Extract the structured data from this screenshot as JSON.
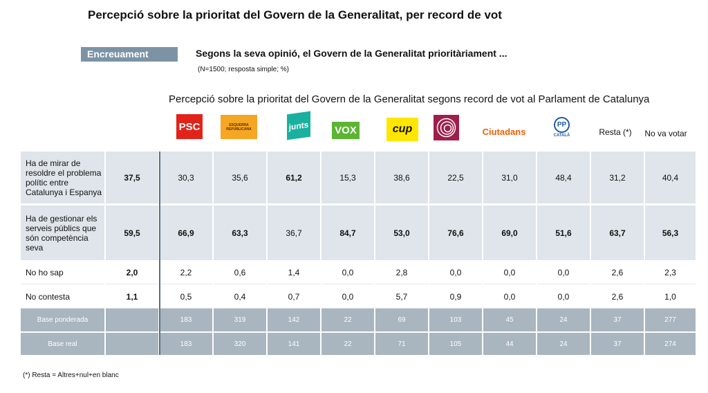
{
  "header": {
    "title": "Percepció sobre la prioritat del Govern de la Generalitat, per record de vot",
    "tag": "Encreuament",
    "question": "Segons la seva opinió, el Govern de la Generalitat prioritàriament ...",
    "note": "(N=1500; resposta simple; %)"
  },
  "table": {
    "title": "Percepció sobre la prioritat del Govern de la Generalitat segons record de vot al Parlament de Catalunya",
    "columns": [
      null,
      {
        "label": "PSC"
      },
      {
        "label": "ESQUERRA REPUBLICANA"
      },
      {
        "label": "junts"
      },
      {
        "label": "VOX"
      },
      {
        "label": "cup"
      },
      {
        "label": null
      },
      {
        "label": "Ciutadans"
      },
      {
        "label": "PP",
        "sublabel": "CATALÀ"
      },
      {
        "label": "Resta (*)"
      },
      {
        "label": "No va votar"
      }
    ],
    "rows": [
      {
        "label": "Ha de mirar de resoldre el problema polític entre Catalunya i Espanya",
        "values": [
          "37,5",
          "30,3",
          "35,6",
          "61,2",
          "15,3",
          "38,6",
          "22,5",
          "31,0",
          "48,4",
          "31,2",
          "40,4"
        ],
        "bold": [
          true,
          false,
          false,
          true,
          false,
          false,
          false,
          false,
          false,
          false,
          false
        ]
      },
      {
        "label": "Ha de gestionar els serveis públics que són competència seva",
        "values": [
          "59,5",
          "66,9",
          "63,3",
          "36,7",
          "84,7",
          "53,0",
          "76,6",
          "69,0",
          "51,6",
          "63,7",
          "56,3"
        ],
        "bold": [
          true,
          true,
          true,
          false,
          true,
          true,
          true,
          true,
          true,
          true,
          true
        ]
      },
      {
        "label": "No ho sap",
        "values": [
          "2,0",
          "2,2",
          "0,6",
          "1,4",
          "0,0",
          "2,8",
          "0,0",
          "0,0",
          "0,0",
          "2,6",
          "2,3"
        ],
        "bold": [
          true,
          false,
          false,
          false,
          false,
          false,
          false,
          false,
          false,
          false,
          false
        ]
      },
      {
        "label": "No contesta",
        "values": [
          "1,1",
          "0,5",
          "0,4",
          "0,7",
          "0,0",
          "5,7",
          "0,9",
          "0,0",
          "0,0",
          "2,6",
          "1,0"
        ],
        "bold": [
          true,
          false,
          false,
          false,
          false,
          false,
          false,
          false,
          false,
          false,
          false
        ]
      },
      {
        "label": "Base ponderada",
        "values": [
          null,
          "183",
          "319",
          "142",
          "22",
          "69",
          "103",
          "45",
          "24",
          "37",
          "277"
        ]
      },
      {
        "label": "Base real",
        "values": [
          null,
          "183",
          "320",
          "141",
          "22",
          "71",
          "105",
          "44",
          "24",
          "37",
          "274"
        ]
      }
    ]
  },
  "footnote": "(*) Resta = Altres+nul+en blanc"
}
